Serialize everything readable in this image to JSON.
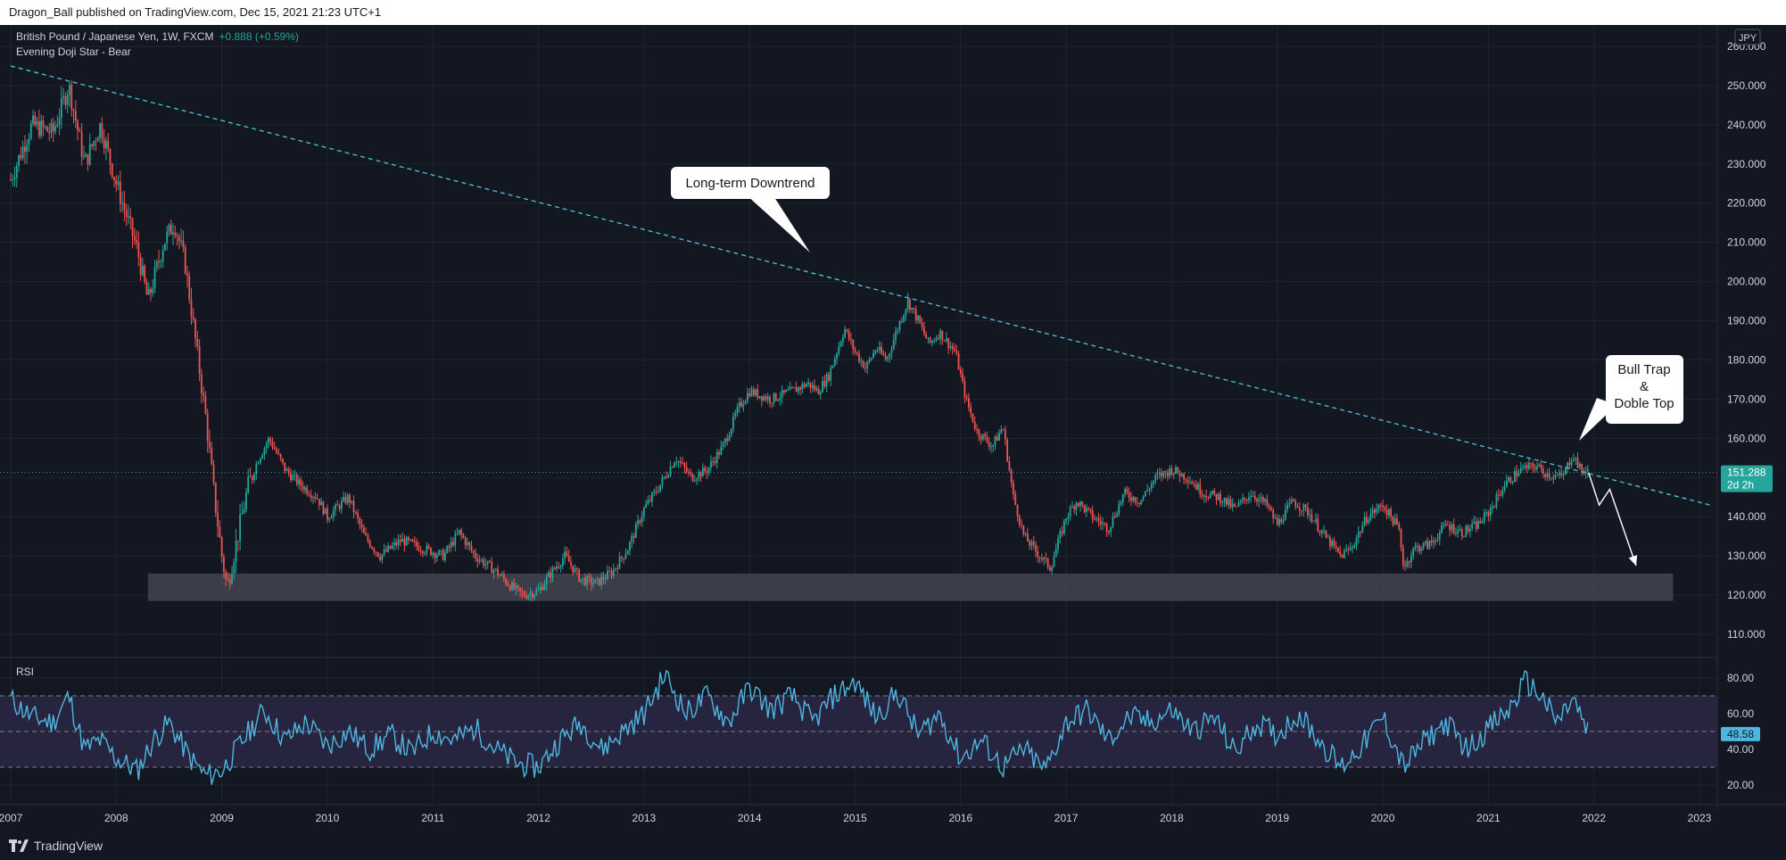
{
  "header": {
    "published": "Dragon_Ball published on TradingView.com, Dec 15, 2021 21:23 UTC+1"
  },
  "legend": {
    "symbol": "British Pound / Japanese Yen, 1W, FXCM",
    "change": "+0.888 (+0.59%)",
    "study": "Evening Doji Star - Bear",
    "currency": "JPY"
  },
  "annotations": {
    "downtrend": "Long-term Downtrend",
    "bull_trap_1": "Bull Trap",
    "bull_trap_2": "&",
    "bull_trap_3": "Doble Top"
  },
  "price_tag": {
    "value": "151.288",
    "countdown": "2d 2h"
  },
  "rsi": {
    "label": "RSI",
    "value": "48.58"
  },
  "footer": {
    "brand": "TradingView"
  },
  "colors": {
    "background": "#131722",
    "up": "#26a69a",
    "down": "#ef5350",
    "trendline": "#4fc3d9",
    "rsi_line": "#4fb6e0",
    "rsi_band": "#2a2744",
    "support_zone": "#4a4c55",
    "price_tag": "#26a69a"
  },
  "chart_data": [
    {
      "type": "candlestick",
      "ylim": [
        105,
        265
      ],
      "xlim": [
        2007.0,
        2023.25
      ],
      "y_ticks": [
        110,
        120,
        130,
        140,
        150,
        160,
        170,
        180,
        190,
        200,
        210,
        220,
        230,
        240,
        250,
        260
      ],
      "y_tick_labels": [
        "110.000",
        "120.000",
        "130.000",
        "140.000",
        "150.000",
        "160.000",
        "170.000",
        "180.000",
        "190.000",
        "200.000",
        "210.000",
        "220.000",
        "230.000",
        "240.000",
        "250.000",
        "260.000"
      ],
      "x_ticks": [
        2007,
        2008,
        2009,
        2010,
        2011,
        2012,
        2013,
        2014,
        2015,
        2016,
        2017,
        2018,
        2019,
        2020,
        2021,
        2022,
        2023
      ],
      "x_tick_labels": [
        "2007",
        "2008",
        "2009",
        "2010",
        "2011",
        "2012",
        "2013",
        "2014",
        "2015",
        "2016",
        "2017",
        "2018",
        "2019",
        "2020",
        "2021",
        "2022",
        "2023"
      ],
      "price_path": [
        [
          2007.0,
          226
        ],
        [
          2007.2,
          240
        ],
        [
          2007.4,
          238
        ],
        [
          2007.55,
          250
        ],
        [
          2007.7,
          230
        ],
        [
          2007.85,
          240
        ],
        [
          2008.0,
          225
        ],
        [
          2008.2,
          208
        ],
        [
          2008.3,
          195
        ],
        [
          2008.45,
          210
        ],
        [
          2008.55,
          215
        ],
        [
          2008.65,
          205
        ],
        [
          2008.75,
          185
        ],
        [
          2008.85,
          165
        ],
        [
          2008.93,
          145
        ],
        [
          2009.0,
          130
        ],
        [
          2009.05,
          122
        ],
        [
          2009.15,
          135
        ],
        [
          2009.25,
          148
        ],
        [
          2009.35,
          155
        ],
        [
          2009.45,
          160
        ],
        [
          2009.6,
          152
        ],
        [
          2009.75,
          148
        ],
        [
          2009.9,
          145
        ],
        [
          2010.0,
          140
        ],
        [
          2010.2,
          145
        ],
        [
          2010.35,
          135
        ],
        [
          2010.5,
          130
        ],
        [
          2010.7,
          134
        ],
        [
          2010.9,
          132
        ],
        [
          2011.1,
          130
        ],
        [
          2011.25,
          136
        ],
        [
          2011.4,
          130
        ],
        [
          2011.6,
          126
        ],
        [
          2011.75,
          122
        ],
        [
          2011.85,
          120
        ],
        [
          2012.0,
          121
        ],
        [
          2012.1,
          125
        ],
        [
          2012.25,
          130
        ],
        [
          2012.4,
          124
        ],
        [
          2012.55,
          123
        ],
        [
          2012.7,
          126
        ],
        [
          2012.85,
          132
        ],
        [
          2013.0,
          142
        ],
        [
          2013.15,
          148
        ],
        [
          2013.3,
          155
        ],
        [
          2013.45,
          150
        ],
        [
          2013.6,
          152
        ],
        [
          2013.75,
          158
        ],
        [
          2013.9,
          168
        ],
        [
          2014.0,
          172
        ],
        [
          2014.2,
          170
        ],
        [
          2014.4,
          172
        ],
        [
          2014.55,
          174
        ],
        [
          2014.65,
          172
        ],
        [
          2014.75,
          176
        ],
        [
          2014.9,
          188
        ],
        [
          2015.0,
          182
        ],
        [
          2015.1,
          178
        ],
        [
          2015.2,
          183
        ],
        [
          2015.3,
          180
        ],
        [
          2015.4,
          188
        ],
        [
          2015.5,
          195
        ],
        [
          2015.6,
          190
        ],
        [
          2015.7,
          184
        ],
        [
          2015.8,
          187
        ],
        [
          2015.95,
          182
        ],
        [
          2016.05,
          170
        ],
        [
          2016.15,
          162
        ],
        [
          2016.3,
          158
        ],
        [
          2016.4,
          163
        ],
        [
          2016.5,
          145
        ],
        [
          2016.6,
          135
        ],
        [
          2016.75,
          130
        ],
        [
          2016.85,
          127
        ],
        [
          2017.0,
          140
        ],
        [
          2017.1,
          144
        ],
        [
          2017.25,
          140
        ],
        [
          2017.4,
          137
        ],
        [
          2017.55,
          146
        ],
        [
          2017.7,
          144
        ],
        [
          2017.85,
          150
        ],
        [
          2018.0,
          152
        ],
        [
          2018.15,
          150
        ],
        [
          2018.3,
          146
        ],
        [
          2018.45,
          145
        ],
        [
          2018.6,
          142
        ],
        [
          2018.75,
          146
        ],
        [
          2018.9,
          143
        ],
        [
          2019.0,
          138
        ],
        [
          2019.15,
          144
        ],
        [
          2019.3,
          141
        ],
        [
          2019.45,
          135
        ],
        [
          2019.6,
          130
        ],
        [
          2019.7,
          132
        ],
        [
          2019.85,
          140
        ],
        [
          2020.0,
          143
        ],
        [
          2020.15,
          137
        ],
        [
          2020.2,
          127
        ],
        [
          2020.3,
          132
        ],
        [
          2020.45,
          133
        ],
        [
          2020.6,
          138
        ],
        [
          2020.75,
          136
        ],
        [
          2020.9,
          138
        ],
        [
          2021.0,
          141
        ],
        [
          2021.15,
          148
        ],
        [
          2021.3,
          152
        ],
        [
          2021.45,
          153
        ],
        [
          2021.55,
          151
        ],
        [
          2021.7,
          150
        ],
        [
          2021.8,
          156
        ],
        [
          2021.87,
          152
        ],
        [
          2021.95,
          151.3
        ]
      ],
      "trendline": {
        "from": [
          2007.0,
          255
        ],
        "to": [
          2023.1,
          143
        ]
      },
      "support_zone": {
        "x": [
          2008.3,
          2022.75
        ],
        "y": [
          118.5,
          125.5
        ]
      },
      "forecast_path": [
        [
          2021.95,
          151.2
        ],
        [
          2022.05,
          143
        ],
        [
          2022.15,
          147
        ],
        [
          2022.4,
          127.5
        ]
      ],
      "last_price": 151.288
    },
    {
      "type": "line",
      "name": "RSI",
      "ylim": [
        10,
        90
      ],
      "y_ticks": [
        20,
        40,
        60,
        80
      ],
      "y_tick_labels": [
        "20.00",
        "40.00",
        "60.00",
        "80.00"
      ],
      "levels": {
        "upper": 70,
        "middle": 50,
        "lower": 30
      },
      "x": [
        2007.0,
        2007.2,
        2007.4,
        2007.55,
        2007.7,
        2007.85,
        2008.0,
        2008.2,
        2008.35,
        2008.5,
        2008.7,
        2008.85,
        2009.0,
        2009.2,
        2009.4,
        2009.6,
        2009.8,
        2010.0,
        2010.2,
        2010.4,
        2010.6,
        2010.8,
        2011.0,
        2011.2,
        2011.4,
        2011.6,
        2011.8,
        2012.0,
        2012.2,
        2012.4,
        2012.6,
        2012.8,
        2013.0,
        2013.2,
        2013.4,
        2013.6,
        2013.8,
        2014.0,
        2014.2,
        2014.4,
        2014.6,
        2014.8,
        2015.0,
        2015.2,
        2015.4,
        2015.6,
        2015.8,
        2016.0,
        2016.2,
        2016.4,
        2016.6,
        2016.8,
        2017.0,
        2017.2,
        2017.4,
        2017.6,
        2017.8,
        2018.0,
        2018.2,
        2018.4,
        2018.6,
        2018.8,
        2019.0,
        2019.2,
        2019.4,
        2019.6,
        2019.8,
        2020.0,
        2020.2,
        2020.4,
        2020.6,
        2020.8,
        2021.0,
        2021.2,
        2021.35,
        2021.5,
        2021.65,
        2021.8,
        2021.95
      ],
      "values": [
        68,
        58,
        55,
        70,
        40,
        45,
        35,
        28,
        45,
        55,
        35,
        25,
        28,
        45,
        62,
        45,
        55,
        42,
        50,
        40,
        48,
        38,
        50,
        45,
        52,
        40,
        32,
        30,
        45,
        55,
        40,
        50,
        60,
        82,
        60,
        70,
        55,
        75,
        62,
        70,
        55,
        70,
        78,
        58,
        72,
        48,
        60,
        35,
        45,
        30,
        40,
        28,
        55,
        62,
        45,
        58,
        55,
        62,
        50,
        58,
        38,
        55,
        48,
        60,
        45,
        30,
        42,
        58,
        30,
        45,
        55,
        40,
        52,
        62,
        78,
        70,
        55,
        68,
        48
      ]
    }
  ]
}
